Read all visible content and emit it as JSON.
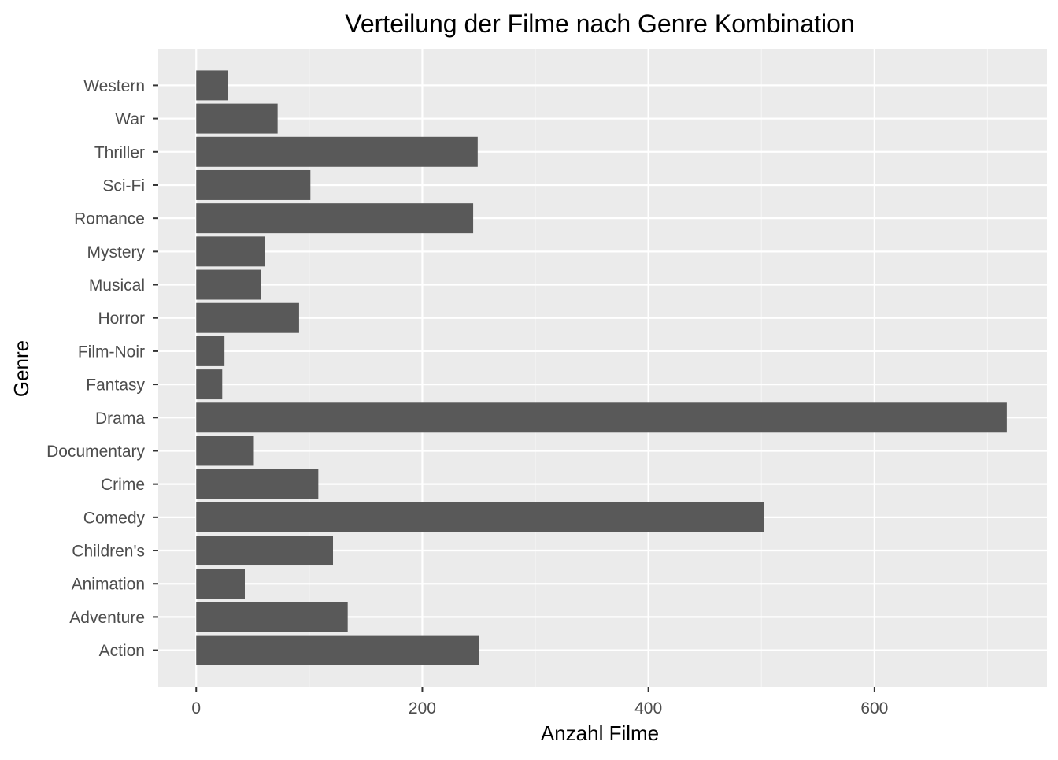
{
  "chart_data": {
    "type": "bar",
    "orientation": "horizontal",
    "title": "Verteilung der Filme nach Genre Kombination",
    "xlabel": "Anzahl Filme",
    "ylabel": "Genre",
    "categories": [
      "Action",
      "Adventure",
      "Animation",
      "Children's",
      "Comedy",
      "Crime",
      "Documentary",
      "Drama",
      "Fantasy",
      "Film-Noir",
      "Horror",
      "Musical",
      "Mystery",
      "Romance",
      "Sci-Fi",
      "Thriller",
      "War",
      "Western"
    ],
    "values": [
      250,
      134,
      43,
      121,
      502,
      108,
      51,
      717,
      23,
      25,
      91,
      57,
      61,
      245,
      101,
      249,
      72,
      28
    ],
    "xlim": [
      -33.6,
      752.6
    ],
    "xticks": [
      0,
      200,
      400,
      600
    ],
    "xtick_labels": [
      "0",
      "200",
      "400",
      "600"
    ],
    "grid": true,
    "legend": "none",
    "colors": {
      "bar": "#595959",
      "panel_background": "#ebebeb",
      "grid_major": "#ffffff",
      "grid_minor": "#f5f5f5",
      "tick_label": "#4d4d4d",
      "axis_title": "#000000"
    }
  }
}
